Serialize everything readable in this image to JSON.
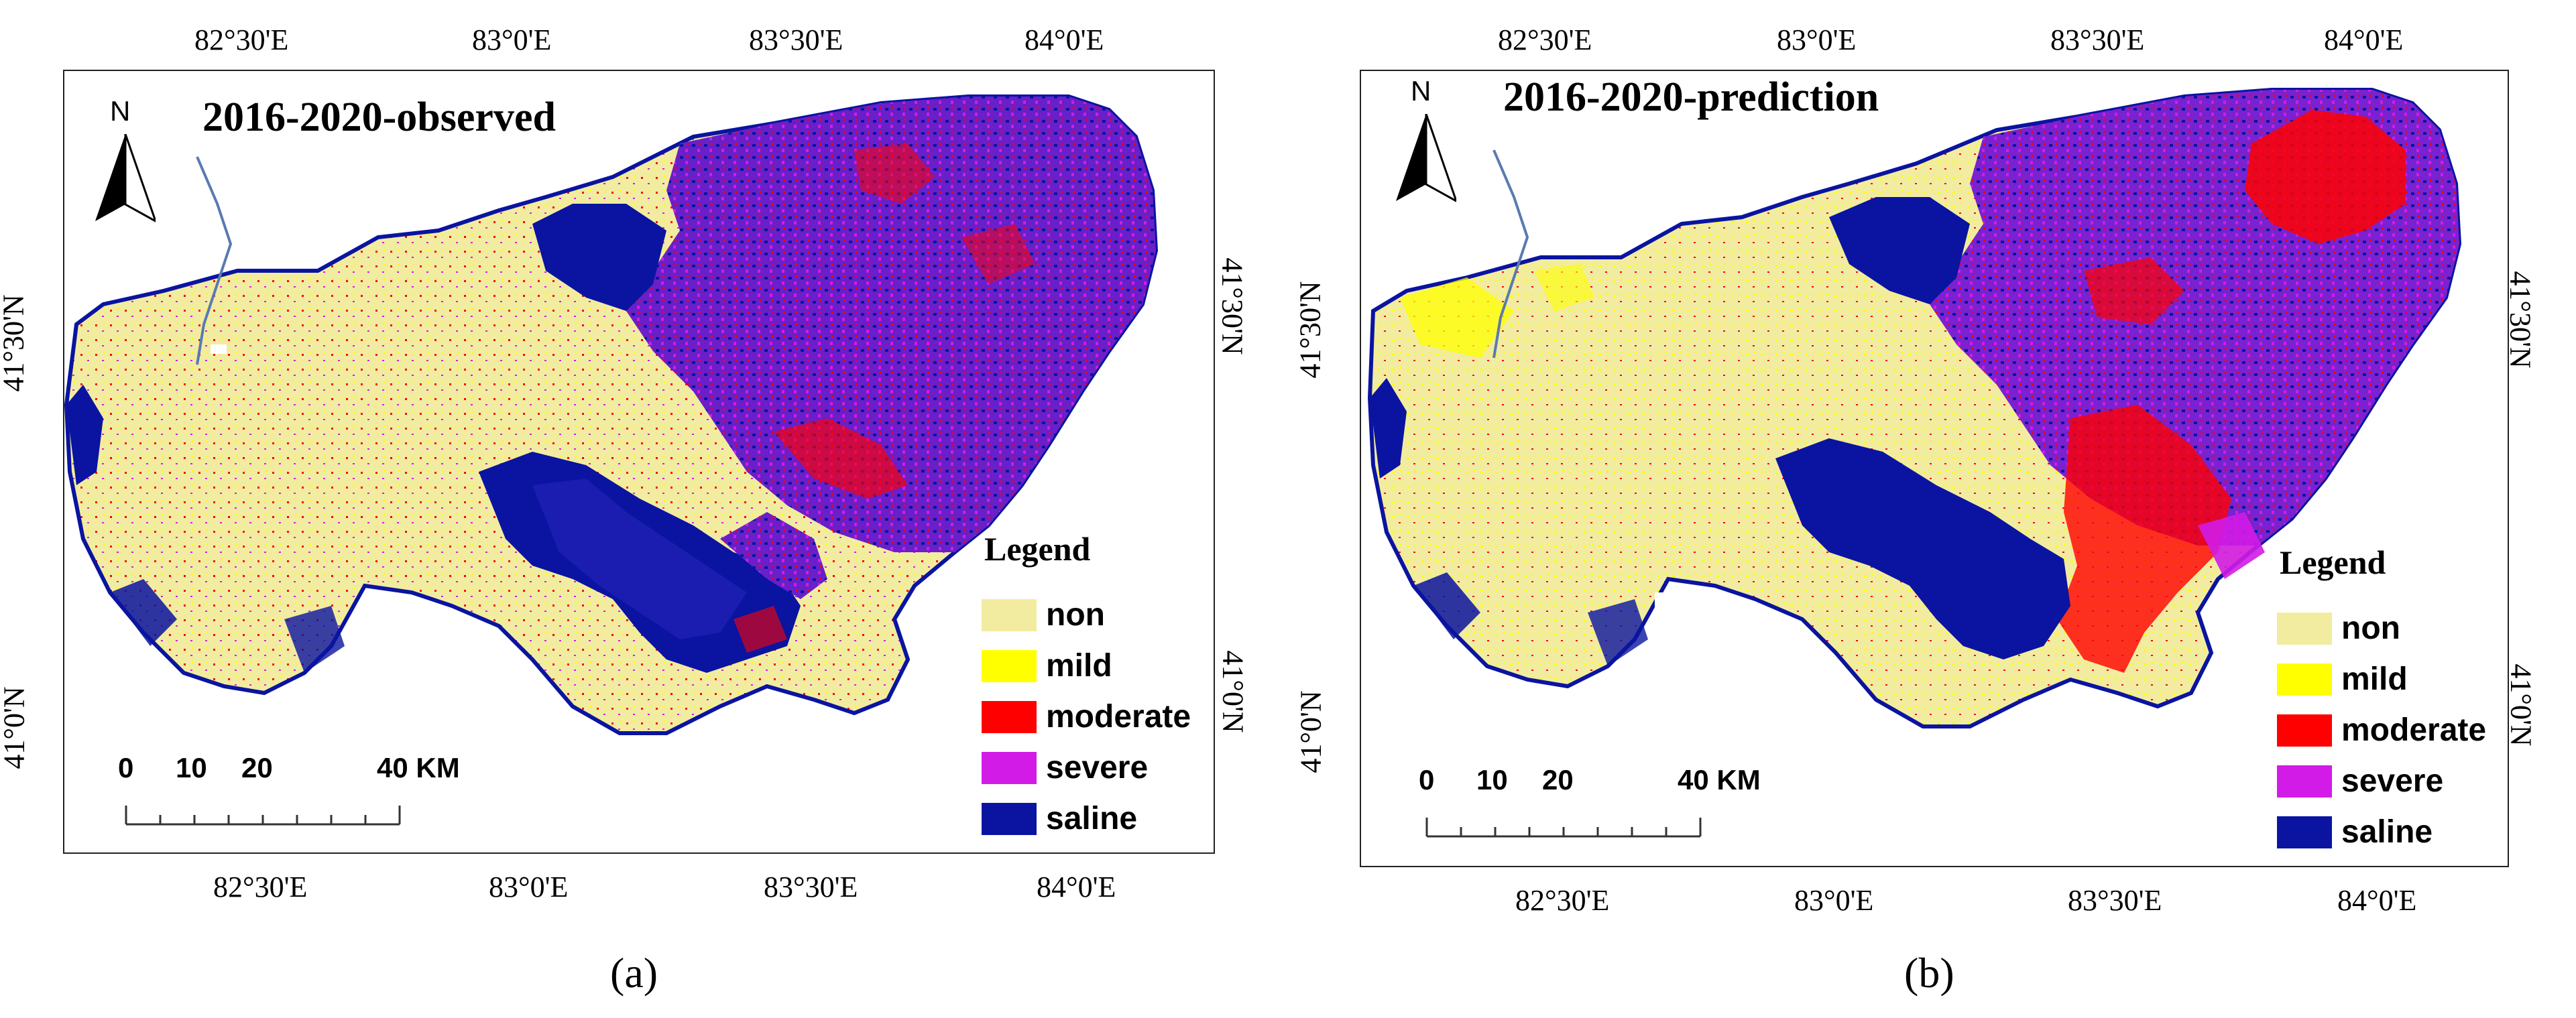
{
  "panels": [
    {
      "id": "a",
      "title": "2016-2020-observed",
      "north_label": "N",
      "top_ticks": [
        "82°30'E",
        "83°0'E",
        "83°30'E",
        "84°0'E"
      ],
      "bottom_ticks": [
        "82°30'E",
        "83°0'E",
        "83°30'E",
        "84°0'E"
      ],
      "left_ticks": [
        "41°30'N",
        "41°0'N"
      ],
      "right_ticks": [
        "41°30'N",
        "41°0'N"
      ],
      "scale_labels": [
        "0",
        "10",
        "20",
        "40 KM"
      ],
      "caption": "(a)"
    },
    {
      "id": "b",
      "title": "2016-2020-prediction",
      "north_label": "N",
      "top_ticks": [
        "82°30'E",
        "83°0'E",
        "83°30'E",
        "84°0'E"
      ],
      "bottom_ticks": [
        "82°30'E",
        "83°0'E",
        "83°30'E",
        "84°0'E"
      ],
      "left_ticks": [
        "41°30'N",
        "41°0'N"
      ],
      "right_ticks": [
        "41°30'N",
        "41°0'N"
      ],
      "scale_labels": [
        "0",
        "10",
        "20",
        "40 KM"
      ],
      "caption": "(b)"
    }
  ],
  "legend": {
    "title": "Legend",
    "items": [
      {
        "label": "non",
        "color": "#f2eca0"
      },
      {
        "label": "mild",
        "color": "#ffff00"
      },
      {
        "label": "moderate",
        "color": "#ff0000"
      },
      {
        "label": "severe",
        "color": "#d21be6"
      },
      {
        "label": "saline",
        "color": "#0a14a0"
      }
    ]
  },
  "colors": {
    "non": "#f2eca0",
    "mild": "#ffff00",
    "moderate": "#ff0000",
    "severe": "#d21be6",
    "saline": "#0a14a0",
    "severe_mix": "#6a1fc8"
  }
}
